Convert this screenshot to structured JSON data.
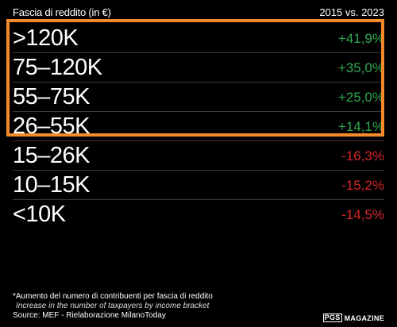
{
  "header": {
    "title": "Fascia di reddito (in €)",
    "period": "2015 vs. 2023"
  },
  "colors": {
    "positive": "#2fa84f",
    "negative": "#d8262c",
    "highlight": "#f58a2a",
    "background": "#000000"
  },
  "chart_data": {
    "type": "table",
    "title": "Fascia di reddito (in €)",
    "column_header": "2015 vs. 2023",
    "rows": [
      {
        "label": ">120K",
        "value": "+41,9%",
        "change": 41.9
      },
      {
        "label": "75–120K",
        "value": "+35,0%",
        "change": 35.0
      },
      {
        "label": "55–75K",
        "value": "+25,0%",
        "change": 25.0
      },
      {
        "label": "26–55K",
        "value": "+14,1%",
        "change": 14.1
      },
      {
        "label": "15–26K",
        "value": "-16,3%",
        "change": -16.3
      },
      {
        "label": "10–15K",
        "value": "-15,2%",
        "change": -15.2
      },
      {
        "label": "<10K",
        "value": "-14,5%",
        "change": -14.5
      }
    ],
    "highlighted_rows": [
      0,
      1,
      2,
      3
    ]
  },
  "footnote": {
    "line1": "*Aumento del numero di contribuenti per fascia di reddito",
    "line2": "Increase in the number of taxpayers by income bracket",
    "source": "Source: MEF - Rielaborazione MilanoToday"
  },
  "brand": {
    "logo": "PGS",
    "name": "MAGAZINE"
  }
}
